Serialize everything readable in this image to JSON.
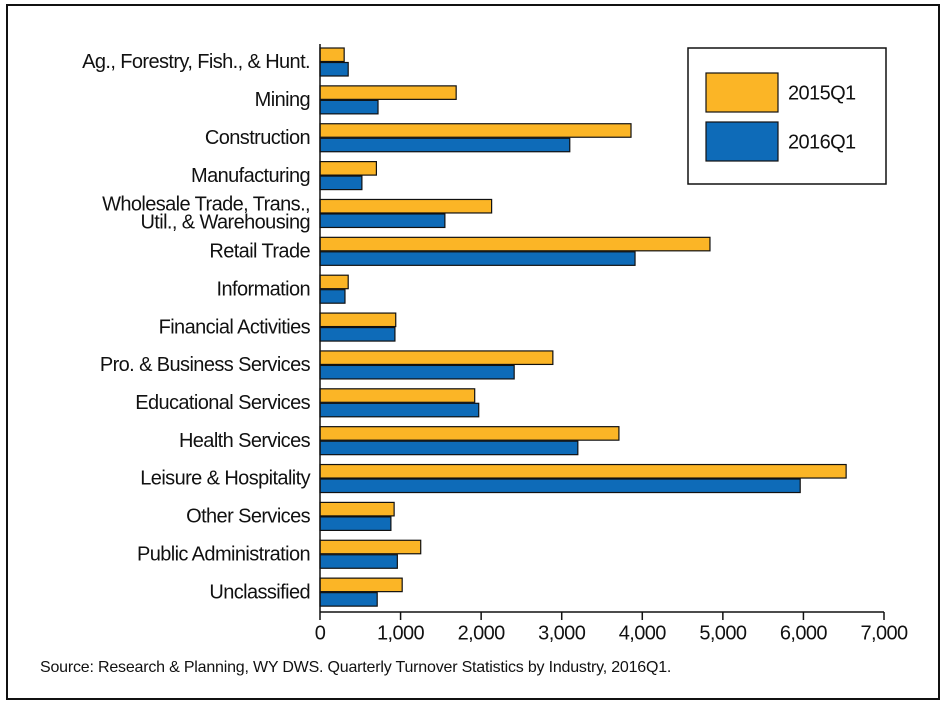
{
  "chart_data": {
    "type": "barh",
    "source": "Source: Research & Planning, WY DWS. Quarterly Turnover Statistics by Industry, 2016Q1.",
    "categories": [
      "Ag., Forestry, Fish., & Hunt.",
      "Mining",
      "Construction",
      "Manufacturing",
      "Wholesale Trade, Trans.,\nUtil., & Warehousing",
      "Retail Trade",
      "Information",
      "Financial Activities",
      "Pro. & Business Services",
      "Educational Services",
      "Health Services",
      "Leisure & Hospitality",
      "Other Services",
      "Public Administration",
      "Unclassified"
    ],
    "series": [
      {
        "name": "2015Q1",
        "color": "#fbb526",
        "values": [
          300,
          1690,
          3860,
          700,
          2130,
          4840,
          350,
          940,
          2890,
          1920,
          3710,
          6530,
          920,
          1250,
          1020
        ]
      },
      {
        "name": "2016Q1",
        "color": "#0e6bb8",
        "values": [
          350,
          720,
          3100,
          520,
          1550,
          3910,
          310,
          930,
          2410,
          1970,
          3200,
          5960,
          880,
          960,
          710
        ]
      }
    ],
    "xlim": [
      0,
      7000
    ],
    "xticks": [
      0,
      {
        "value": 1000,
        "label": "1,000"
      },
      {
        "value": 2000,
        "label": "2,000"
      },
      {
        "value": 3000,
        "label": "3,000"
      },
      {
        "value": 4000,
        "label": "4,000"
      },
      {
        "value": 5000,
        "label": "5,000"
      },
      {
        "value": 6000,
        "label": "6,000"
      },
      {
        "value": 7000,
        "label": "7,000"
      }
    ],
    "legend": "top-right"
  }
}
